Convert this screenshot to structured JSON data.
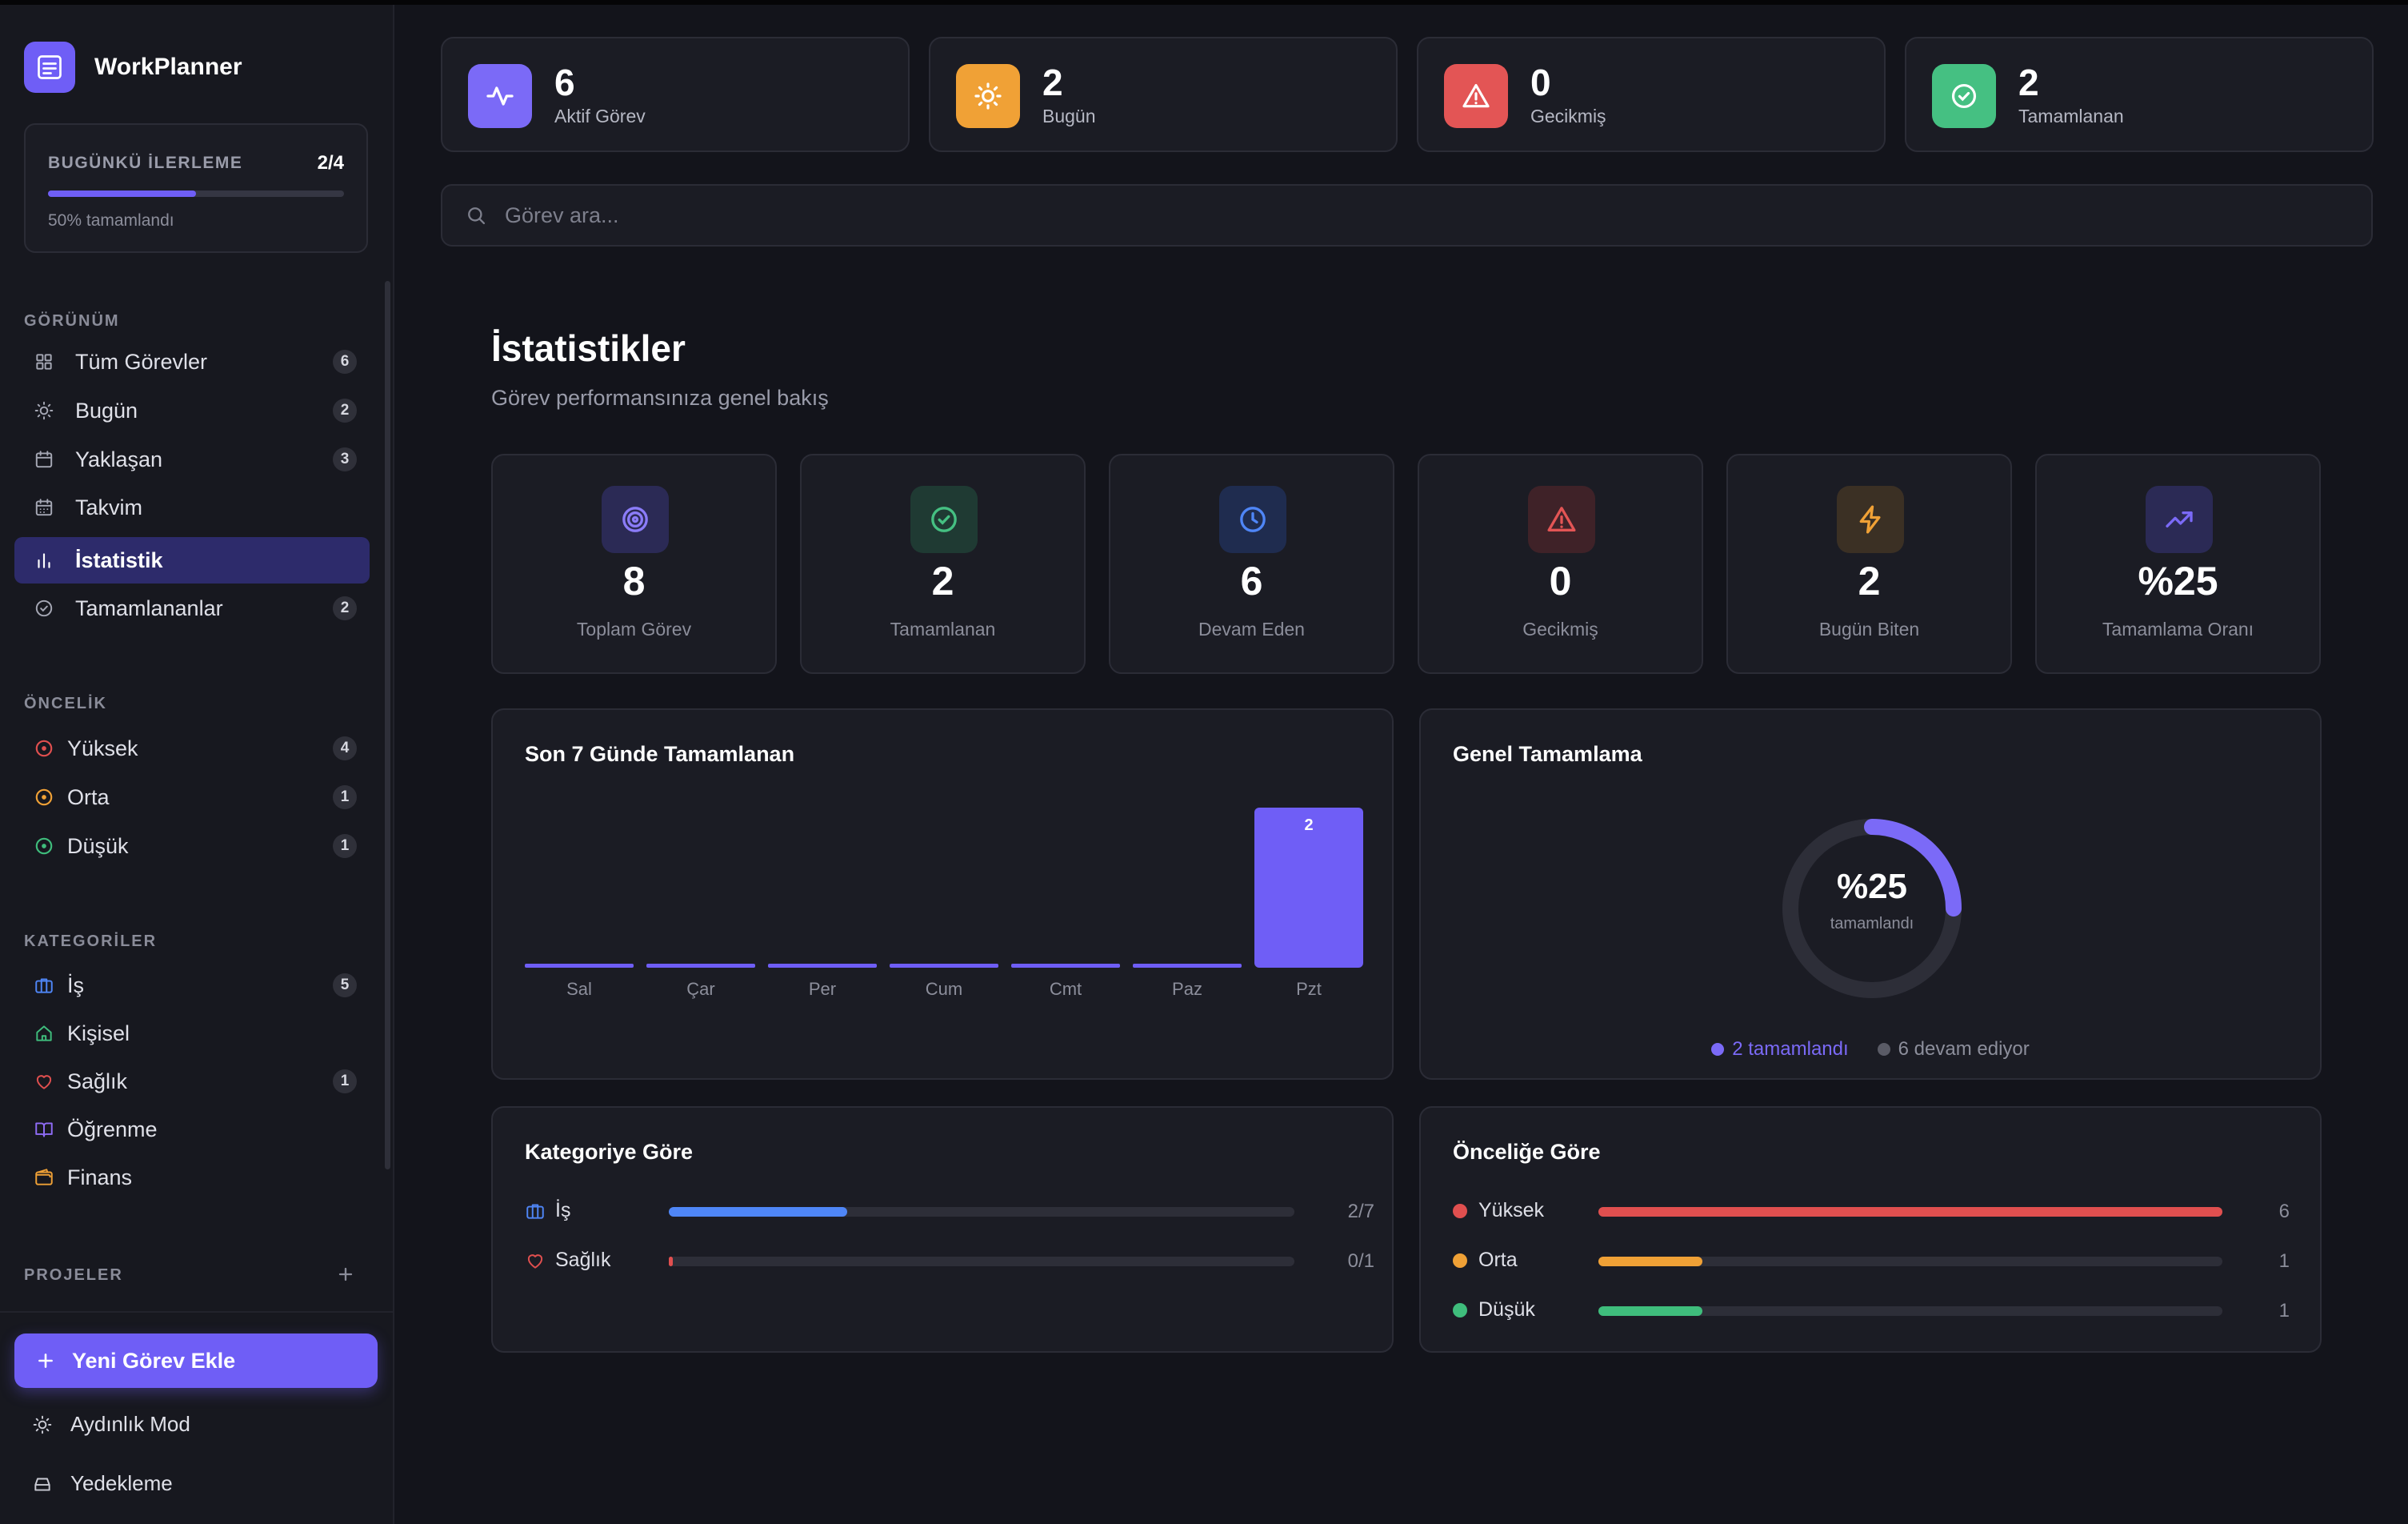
{
  "app": {
    "name": "WorkPlanner"
  },
  "progress": {
    "title": "BUGÜNKÜ İLERLEME",
    "count": "2/4",
    "fraction": 0.5,
    "subtitle": "50% tamamlandı"
  },
  "sidebar": {
    "view_label": "GÖRÜNÜM",
    "view_items": [
      {
        "label": "Tüm Görevler",
        "badge": "6"
      },
      {
        "label": "Bugün",
        "badge": "2"
      },
      {
        "label": "Yaklaşan",
        "badge": "3"
      },
      {
        "label": "Takvim"
      },
      {
        "label": "İstatistik"
      },
      {
        "label": "Tamamlananlar",
        "badge": "2"
      }
    ],
    "priority_label": "ÖNCELİK",
    "priority_items": [
      {
        "label": "Yüksek",
        "badge": "4",
        "color": "#e04f4f"
      },
      {
        "label": "Orta",
        "badge": "1",
        "color": "#f0a136"
      },
      {
        "label": "Düşük",
        "badge": "1",
        "color": "#3fbd7c"
      }
    ],
    "category_label": "KATEGORİLER",
    "category_items": [
      {
        "label": "İş",
        "badge": "5",
        "icon": "briefcase-icon",
        "color": "#4f86f7"
      },
      {
        "label": "Kişisel",
        "icon": "home-icon",
        "color": "#3fbd7c"
      },
      {
        "label": "Sağlık",
        "badge": "1",
        "icon": "heart-icon",
        "color": "#e04f4f"
      },
      {
        "label": "Öğrenme",
        "icon": "book-icon",
        "color": "#8f6cf6"
      },
      {
        "label": "Finans",
        "icon": "wallet-icon",
        "color": "#f0a136"
      }
    ],
    "projects_label": "PROJELER",
    "add_task": "Yeni Görev Ekle",
    "light_mode": "Aydınlık Mod",
    "backup": "Yedekleme"
  },
  "top_stats": [
    {
      "value": "6",
      "label": "Aktif Görev",
      "color": "#7b6af7",
      "icon": "activity-icon"
    },
    {
      "value": "2",
      "label": "Bugün",
      "color": "#f0a136",
      "icon": "sun-icon"
    },
    {
      "value": "0",
      "label": "Gecikmiş",
      "color": "#e35555",
      "icon": "alert-icon"
    },
    {
      "value": "2",
      "label": "Tamamlanan",
      "color": "#45c082",
      "icon": "check-circle-icon"
    }
  ],
  "search": {
    "placeholder": "Görev ara..."
  },
  "page": {
    "title": "İstatistikler",
    "subtitle": "Görev performansınıza genel bakış"
  },
  "kpis": [
    {
      "value": "8",
      "label": "Toplam Görev",
      "icon": "target-icon",
      "color": "#8b7cf8",
      "bg": "#2b2a55"
    },
    {
      "value": "2",
      "label": "Tamamlanan",
      "icon": "check-circle-icon",
      "color": "#45c082",
      "bg": "#1f3a33"
    },
    {
      "value": "6",
      "label": "Devam Eden",
      "icon": "clock-icon",
      "color": "#4f86f7",
      "bg": "#1f2c4f"
    },
    {
      "value": "0",
      "label": "Gecikmiş",
      "icon": "alert-icon",
      "color": "#e35555",
      "bg": "#3f2228"
    },
    {
      "value": "2",
      "label": "Bugün Biten",
      "icon": "bolt-icon",
      "color": "#f0a136",
      "bg": "#3b3024"
    },
    {
      "value": "%25",
      "label": "Tamamlama Oranı",
      "icon": "trending-up-icon",
      "color": "#7b6af7",
      "bg": "#2b2a55"
    }
  ],
  "weekly": {
    "title": "Son 7 Günde Tamamlanan"
  },
  "overall": {
    "title": "Genel Tamamlama",
    "percent_text": "%25",
    "caption": "tamamlandı",
    "fraction": 0.25,
    "legend": [
      {
        "label": "2 tamamlandı",
        "color": "#7b6af7"
      },
      {
        "label": "6 devam ediyor",
        "color": "#5a5b66"
      }
    ]
  },
  "by_category": {
    "title": "Kategoriye Göre",
    "rows": [
      {
        "label": "İş",
        "value": "2/7",
        "fraction": 0.2857,
        "color": "#4f86f7",
        "icon": "briefcase-icon"
      },
      {
        "label": "Sağlık",
        "value": "0/1",
        "fraction": 0,
        "color": "#e04f4f",
        "icon": "heart-icon"
      }
    ]
  },
  "by_priority": {
    "title": "Önceliğe Göre",
    "rows": [
      {
        "label": "Yüksek",
        "value": "6",
        "fraction": 1,
        "color": "#e04f4f"
      },
      {
        "label": "Orta",
        "value": "1",
        "fraction": 0.1667,
        "color": "#f0a136"
      },
      {
        "label": "Düşük",
        "value": "1",
        "fraction": 0.1667,
        "color": "#3fbd7c"
      }
    ]
  },
  "chart_data": {
    "type": "bar",
    "title": "Son 7 Günde Tamamlanan",
    "categories": [
      "Sal",
      "Çar",
      "Per",
      "Cum",
      "Cmt",
      "Paz",
      "Pzt"
    ],
    "values": [
      0,
      0,
      0,
      0,
      0,
      0,
      2
    ],
    "data_labels": [
      "",
      "",
      "",
      "",
      "",
      "",
      "2"
    ],
    "color": "#6f5ef6",
    "grid": false
  }
}
